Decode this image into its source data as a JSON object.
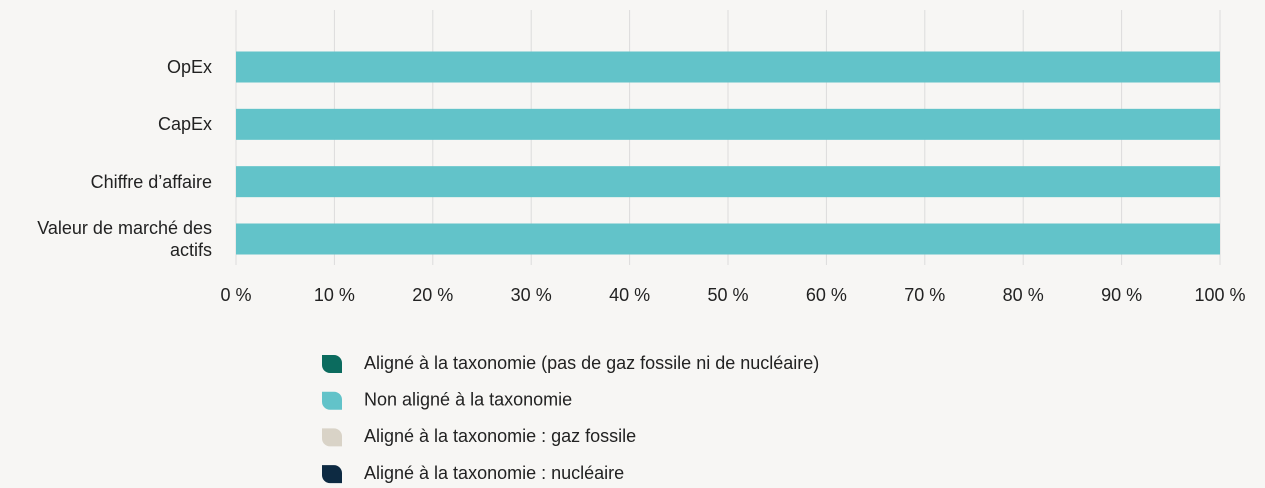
{
  "chart_data": {
    "type": "stacked_barh",
    "categories": [
      "OpEx",
      "CapEx",
      "Chiffre d’affaire",
      "Valeur de marché des actifs"
    ],
    "series": [
      {
        "name": "Aligné à la taxonomie (pas de gaz fossile ni de nucléaire)",
        "color": "#0b6b5e",
        "values": [
          0,
          0,
          0,
          0
        ]
      },
      {
        "name": "Non aligné à la taxonomie",
        "color": "#62c3c9",
        "values": [
          100,
          100,
          100,
          100
        ]
      },
      {
        "name": "Aligné à la taxonomie : gaz fossile",
        "color": "#d9d3c7",
        "values": [
          0,
          0,
          0,
          0
        ]
      },
      {
        "name": "Aligné à la taxonomie : nucléaire",
        "color": "#0d2a42",
        "values": [
          0,
          0,
          0,
          0
        ]
      }
    ],
    "xlim": [
      0,
      100
    ],
    "xticks": [
      {
        "value": 0,
        "label": "0 %"
      },
      {
        "value": 10,
        "label": "10 %"
      },
      {
        "value": 20,
        "label": "20 %"
      },
      {
        "value": 30,
        "label": "30 %"
      },
      {
        "value": 40,
        "label": "40 %"
      },
      {
        "value": 50,
        "label": "50 %"
      },
      {
        "value": 60,
        "label": "60 %"
      },
      {
        "value": 70,
        "label": "70 %"
      },
      {
        "value": 80,
        "label": "80 %"
      },
      {
        "value": 90,
        "label": "90 %"
      },
      {
        "value": 100,
        "label": "100 %"
      }
    ],
    "grid": true,
    "legend": "bottom"
  }
}
